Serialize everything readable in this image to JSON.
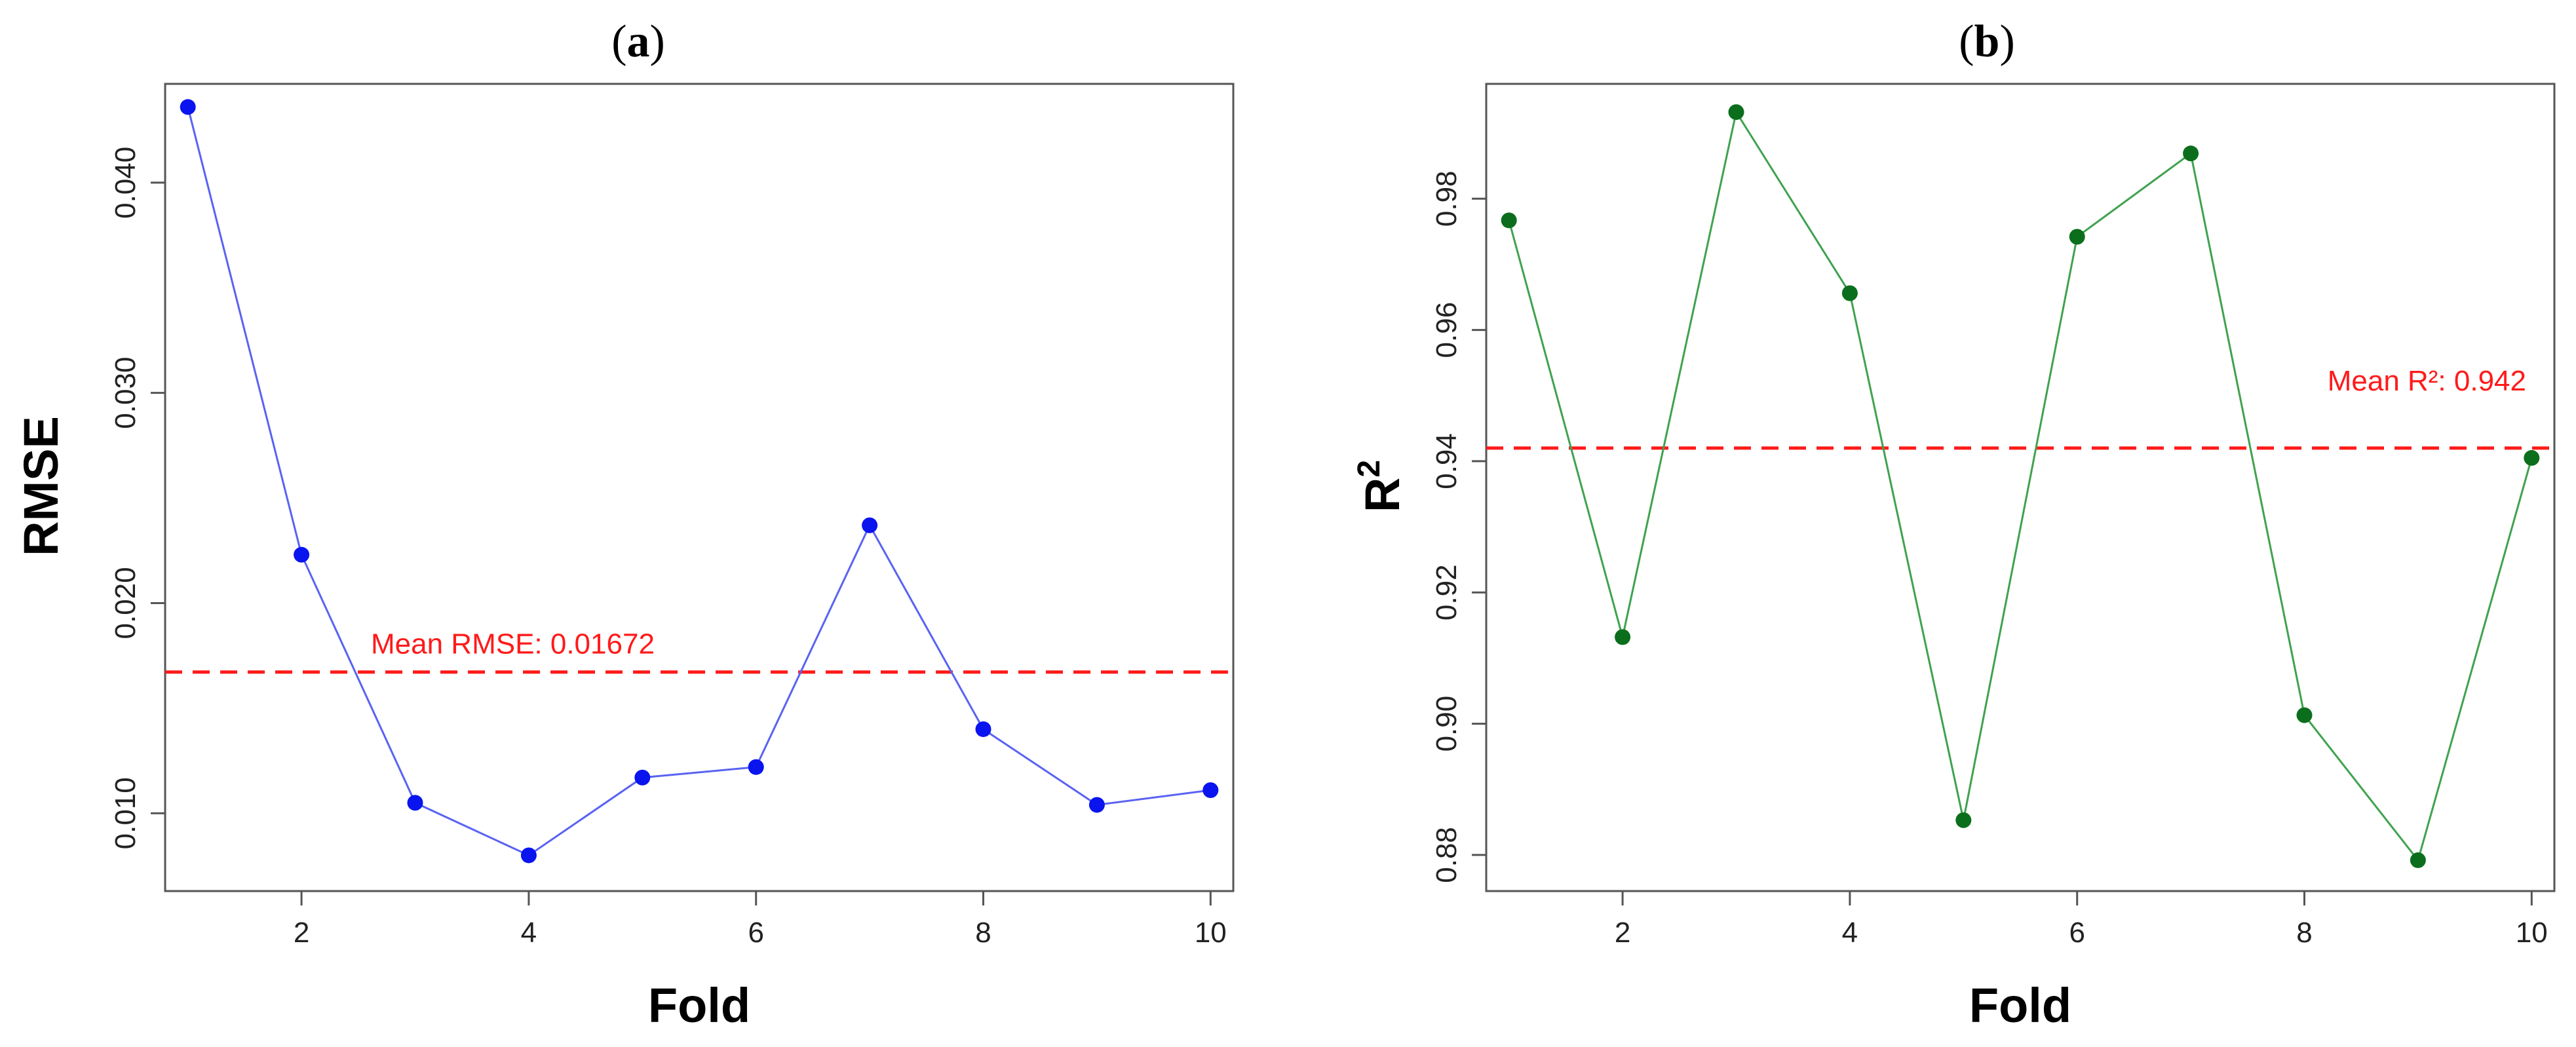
{
  "colors": {
    "rmse_series": "#5a63f2",
    "rmse_points": "#0a14ee",
    "r2_series": "#3fa24f",
    "r2_points": "#0b6e1c",
    "mean_line": "#ff1a1a",
    "axis": "#555555"
  },
  "chart_data": [
    {
      "type": "line",
      "panel_label": "a",
      "title": "",
      "xlabel": "Fold",
      "ylabel": "RMSE",
      "ylabel_sup": "",
      "xlim": [
        0.8,
        10.2
      ],
      "ylim": [
        0.0063,
        0.0447
      ],
      "xticks": [
        2,
        4,
        6,
        8,
        10
      ],
      "yticks": [
        0.01,
        0.02,
        0.03,
        0.04
      ],
      "ytick_labels": [
        "0.010",
        "0.020",
        "0.030",
        "0.040"
      ],
      "grid": false,
      "x": [
        1,
        2,
        3,
        4,
        5,
        6,
        7,
        8,
        9,
        10
      ],
      "series": [
        {
          "values": [
            0.0436,
            0.0223,
            0.0105,
            0.008,
            0.0117,
            0.0122,
            0.0237,
            0.014,
            0.0104,
            0.0111
          ]
        }
      ],
      "mean_line": {
        "value": 0.01672,
        "label": "Mean RMSE: 0.01672"
      }
    },
    {
      "type": "line",
      "panel_label": "b",
      "title": "",
      "xlabel": "Fold",
      "ylabel": "R",
      "ylabel_sup": "2",
      "xlim": [
        0.8,
        10.2
      ],
      "ylim": [
        0.8745,
        0.9975
      ],
      "xticks": [
        2,
        4,
        6,
        8,
        10
      ],
      "yticks": [
        0.88,
        0.9,
        0.92,
        0.94,
        0.96,
        0.98
      ],
      "ytick_labels": [
        "0.88",
        "0.90",
        "0.92",
        "0.94",
        "0.96",
        "0.98"
      ],
      "grid": false,
      "x": [
        1,
        2,
        3,
        4,
        5,
        6,
        7,
        8,
        9,
        10
      ],
      "series": [
        {
          "values": [
            0.9767,
            0.9132,
            0.9932,
            0.9656,
            0.8853,
            0.9742,
            0.9869,
            0.9013,
            0.8792,
            0.9405
          ]
        }
      ],
      "mean_line": {
        "value": 0.942,
        "label": "Mean R²: 0.942"
      }
    }
  ]
}
